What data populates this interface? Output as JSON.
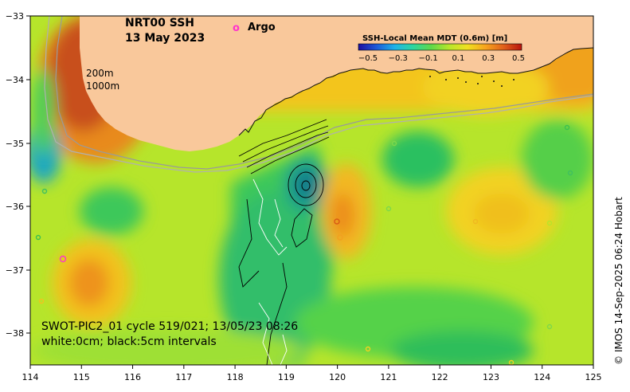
{
  "title": {
    "line1": "NRT00 SSH",
    "line2": "13 May 2023"
  },
  "argo_legend": {
    "marker": "o",
    "label": "Argo"
  },
  "colorbar": {
    "title": "SSH-Local Mean MDT (0.6m) [m]",
    "ticks": [
      "−0.5",
      "−0.3",
      "−0.1",
      "0.1",
      "0.3",
      "0.5"
    ],
    "colors": [
      "#1b0ea0",
      "#1e5ad8",
      "#1fb3e8",
      "#2cd6a0",
      "#5fd84a",
      "#b8e62a",
      "#f0e021",
      "#f7a41e",
      "#e0601a",
      "#b8140e"
    ]
  },
  "depth_labels": [
    "200m",
    "1000m"
  ],
  "axes": {
    "x_ticks": [
      "114",
      "115",
      "116",
      "117",
      "118",
      "119",
      "120",
      "121",
      "122",
      "123",
      "124",
      "125"
    ],
    "y_ticks": [
      "−33",
      "−34",
      "−35",
      "−36",
      "−37",
      "−38"
    ]
  },
  "footer": {
    "line1": "SWOT-PIC2_01 cycle 519/021; 13/05/23 08:26",
    "line2": "white:0cm; black:5cm intervals"
  },
  "credit": "© IMOS 14-Sep-2025 06:24 Hobart",
  "colors": {
    "land": "#f9c89b",
    "argo": "#ff33cc"
  }
}
